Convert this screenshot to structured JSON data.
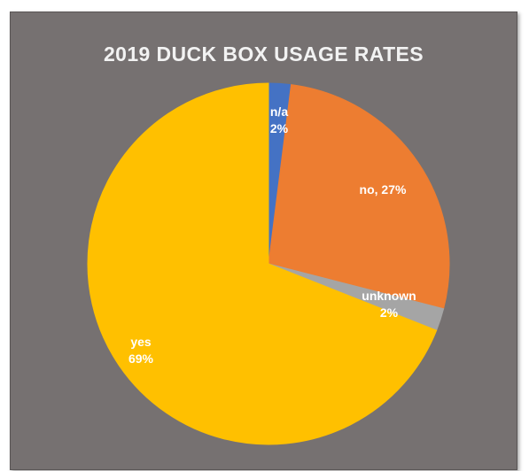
{
  "chart_data": {
    "type": "pie",
    "title": "2019 DUCK BOX USAGE RATES",
    "slices": [
      {
        "name": "n/a",
        "value": 2,
        "color": "#4472C4",
        "label_lines": [
          "n/a",
          "2%"
        ]
      },
      {
        "name": "no",
        "value": 27,
        "color": "#ED7D31",
        "label_lines": [
          "no, 27%"
        ]
      },
      {
        "name": "unknown",
        "value": 2,
        "color": "#A5A5A5",
        "label_lines": [
          "unknown",
          "2%"
        ]
      },
      {
        "name": "yes",
        "value": 69,
        "color": "#FFC000",
        "label_lines": [
          "yes",
          "69%"
        ]
      }
    ],
    "legend": "none"
  },
  "colors": {
    "background": "#767171",
    "title": "#f2f2f2",
    "label": "#ffffff"
  }
}
